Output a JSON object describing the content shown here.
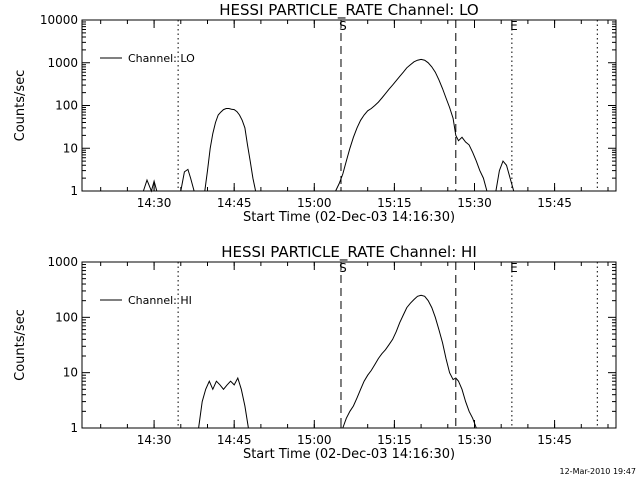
{
  "chart_data": [
    {
      "type": "line",
      "title": "HESSI PARTICLE_RATE Channel: LO",
      "xlabel": "Start Time (02-Dec-03 14:16:30)",
      "ylabel": "Counts/sec",
      "y_scale": "log",
      "ylim": [
        1,
        10000
      ],
      "xlim": [
        "14:16:30",
        "15:56:30"
      ],
      "x_ticks": [
        "14:30",
        "14:45",
        "15:00",
        "15:15",
        "15:30",
        "15:45"
      ],
      "y_ticks": [
        "1",
        "10",
        "100",
        "1000",
        "10000"
      ],
      "legend": {
        "position": "top-left",
        "entries": [
          "Channel: LO"
        ]
      },
      "markers": [
        {
          "label": "",
          "x": "14:34:30",
          "style": "dotted"
        },
        {
          "label": "S",
          "x": "15:05:00",
          "style": "dashed"
        },
        {
          "label": "",
          "x": "15:26:30",
          "style": "dashed"
        },
        {
          "label": "E",
          "x": "15:37:00",
          "style": "dotted"
        },
        {
          "label": "",
          "x": "15:53:00",
          "style": "dotted"
        }
      ],
      "series": [
        {
          "name": "Channel: LO",
          "segments": [
            {
              "x": [
                "14:28:00",
                "14:28:40",
                "14:29:30",
                "14:30:00",
                "14:30:30"
              ],
              "y": [
                1,
                1.8,
                1,
                1.7,
                1
              ]
            },
            {
              "x": [
                "14:35:00",
                "14:35:40",
                "14:36:20",
                "14:36:50",
                "14:37:30"
              ],
              "y": [
                1,
                2.8,
                3.2,
                2,
                1
              ]
            },
            {
              "x": [
                "14:39:30",
                "14:40:00",
                "14:40:30",
                "14:41:00",
                "14:41:30",
                "14:42:00",
                "14:42:30",
                "14:43:00",
                "14:43:30",
                "14:44:00",
                "14:44:30",
                "14:45:00",
                "14:45:30",
                "14:46:00",
                "14:46:30",
                "14:47:00",
                "14:47:30",
                "14:48:00",
                "14:48:30",
                "14:49:00"
              ],
              "y": [
                1,
                3,
                10,
                22,
                40,
                60,
                70,
                80,
                85,
                85,
                82,
                80,
                72,
                60,
                45,
                30,
                12,
                5,
                2,
                1
              ]
            },
            {
              "x": [
                "15:04:00",
                "15:04:40",
                "15:05:20",
                "15:06:00",
                "15:06:40",
                "15:07:20",
                "15:08:00",
                "15:08:40",
                "15:09:20",
                "15:10:00",
                "15:10:40",
                "15:11:20",
                "15:12:00",
                "15:12:40",
                "15:13:20",
                "15:14:00",
                "15:14:40",
                "15:15:20",
                "15:16:00",
                "15:16:40",
                "15:17:20",
                "15:18:00",
                "15:18:40",
                "15:19:20",
                "15:20:00",
                "15:20:40",
                "15:21:20",
                "15:22:00",
                "15:22:40",
                "15:23:20",
                "15:24:00",
                "15:24:40",
                "15:25:20",
                "15:26:00",
                "15:26:30",
                "15:27:00",
                "15:27:40",
                "15:28:20",
                "15:29:00",
                "15:29:40",
                "15:30:20",
                "15:31:00",
                "15:31:40",
                "15:32:20"
              ],
              "y": [
                1,
                1.5,
                2.5,
                5,
                10,
                18,
                30,
                45,
                60,
                75,
                85,
                100,
                120,
                150,
                190,
                240,
                300,
                380,
                480,
                600,
                760,
                900,
                1050,
                1150,
                1200,
                1150,
                1000,
                800,
                600,
                400,
                250,
                150,
                90,
                50,
                20,
                15,
                18,
                14,
                12,
                8,
                5,
                3,
                2,
                1
              ]
            },
            {
              "x": [
                "15:34:00",
                "15:34:40",
                "15:35:20",
                "15:36:00",
                "15:36:40",
                "15:37:20"
              ],
              "y": [
                1,
                3,
                5,
                4,
                2,
                1
              ]
            }
          ]
        }
      ]
    },
    {
      "type": "line",
      "title": "HESSI PARTICLE_RATE Channel: HI",
      "xlabel": "Start Time (02-Dec-03 14:16:30)",
      "ylabel": "Counts/sec",
      "y_scale": "log",
      "ylim": [
        1,
        1000
      ],
      "xlim": [
        "14:16:30",
        "15:56:30"
      ],
      "x_ticks": [
        "14:30",
        "14:45",
        "15:00",
        "15:15",
        "15:30",
        "15:45"
      ],
      "y_ticks": [
        "1",
        "10",
        "100",
        "1000"
      ],
      "legend": {
        "position": "top-left",
        "entries": [
          "Channel: HI"
        ]
      },
      "markers": [
        {
          "label": "",
          "x": "14:34:30",
          "style": "dotted"
        },
        {
          "label": "S",
          "x": "15:05:00",
          "style": "dashed"
        },
        {
          "label": "",
          "x": "15:26:30",
          "style": "dashed"
        },
        {
          "label": "E",
          "x": "15:37:00",
          "style": "dotted"
        },
        {
          "label": "",
          "x": "15:53:00",
          "style": "dotted"
        }
      ],
      "series": [
        {
          "name": "Channel: HI",
          "segments": [
            {
              "x": [
                "14:38:20",
                "14:39:00",
                "14:39:40",
                "14:40:20",
                "14:41:00",
                "14:41:40",
                "14:42:20",
                "14:43:00",
                "14:43:40",
                "14:44:20",
                "14:45:00",
                "14:45:40",
                "14:46:20",
                "14:47:00",
                "14:47:40"
              ],
              "y": [
                1,
                3,
                5,
                7,
                5,
                7,
                6,
                5,
                6,
                7,
                6,
                8,
                5,
                2.5,
                1
              ]
            },
            {
              "x": [
                "15:05:20",
                "15:06:00",
                "15:06:40",
                "15:07:20",
                "15:08:00",
                "15:08:40",
                "15:09:20",
                "15:10:00",
                "15:10:40",
                "15:11:20",
                "15:12:00",
                "15:12:40",
                "15:13:20",
                "15:14:00",
                "15:14:40",
                "15:15:20",
                "15:16:00",
                "15:16:40",
                "15:17:20",
                "15:18:00",
                "15:18:40",
                "15:19:20",
                "15:20:00",
                "15:20:40",
                "15:21:20",
                "15:22:00",
                "15:22:40",
                "15:23:20",
                "15:24:00",
                "15:24:40",
                "15:25:20",
                "15:26:00",
                "15:26:30",
                "15:27:00",
                "15:27:40",
                "15:28:20",
                "15:29:00",
                "15:29:40",
                "15:30:20"
              ],
              "y": [
                1,
                1.5,
                2,
                2.5,
                3.5,
                5,
                7,
                9,
                11,
                14,
                18,
                22,
                26,
                32,
                40,
                55,
                80,
                110,
                150,
                180,
                210,
                240,
                250,
                240,
                200,
                150,
                100,
                60,
                35,
                18,
                10,
                7.5,
                8,
                7,
                5,
                3,
                2,
                1.5,
                1
              ]
            }
          ]
        }
      ]
    }
  ],
  "footer": {
    "timestamp": "12-Mar-2010 19:47"
  }
}
